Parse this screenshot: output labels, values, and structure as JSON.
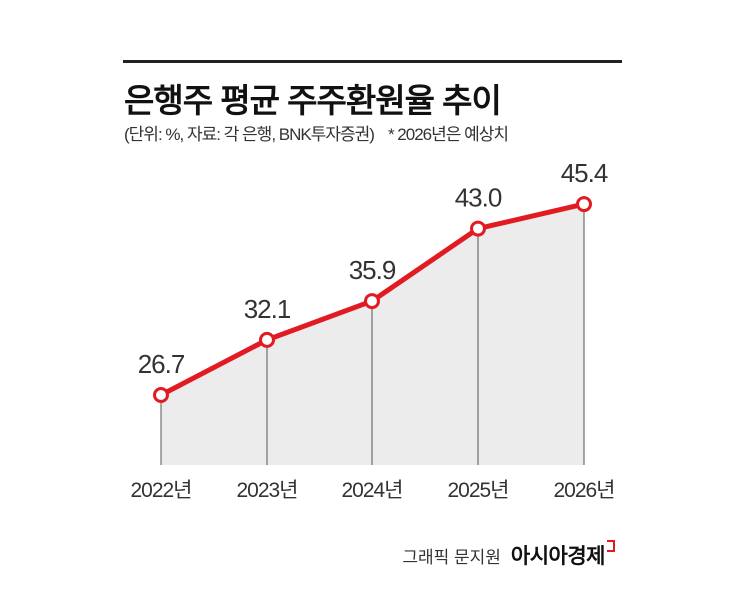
{
  "header": {
    "title": "은행주 평균 주주환원율 추이",
    "subtitle": "(단위: %, 자료: 각 은행, BNK투자증권)",
    "note": "* 2026년은 예상치"
  },
  "credit": {
    "graphic": "그래픽 문지원",
    "brand": "아시아경제"
  },
  "colors": {
    "line": "#e21b23",
    "fill": "#ececec",
    "text": "#333333"
  },
  "chart_data": {
    "type": "line",
    "categories": [
      "2022년",
      "2023년",
      "2024년",
      "2025년",
      "2026년"
    ],
    "values": [
      26.7,
      32.1,
      35.9,
      43.0,
      45.4
    ],
    "labels": [
      "26.7",
      "32.1",
      "35.9",
      "43.0",
      "45.4"
    ],
    "title": "은행주 평균 주주환원율 추이",
    "grid": false
  }
}
